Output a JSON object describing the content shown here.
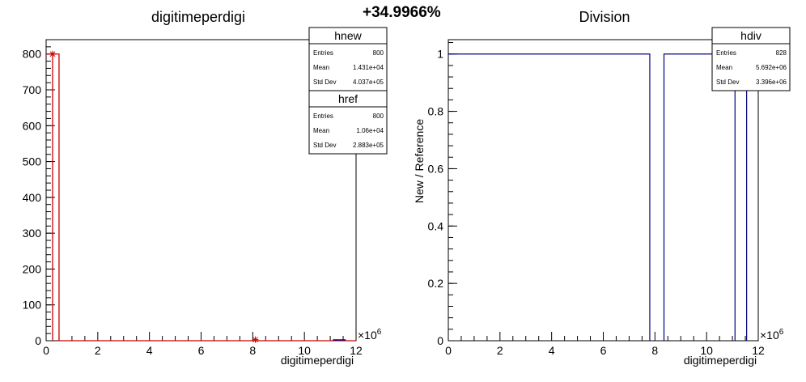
{
  "header": {
    "percent": "+34.9966%"
  },
  "chart_data": [
    {
      "type": "histogram",
      "title": "digitimeperdigi",
      "xlabel": "digitimeperdigi",
      "ylabel": "",
      "x_multiplier": "×10",
      "x_multiplier_exp": "6",
      "xlim": [
        0,
        12
      ],
      "ylim": [
        0,
        840
      ],
      "x_ticks": [
        0,
        2,
        4,
        6,
        8,
        10,
        12
      ],
      "x_tick_labels": [
        "0",
        "2",
        "4",
        "6",
        "8",
        "10",
        "12"
      ],
      "y_ticks": [
        0,
        100,
        200,
        300,
        400,
        500,
        600,
        700,
        800
      ],
      "y_tick_labels": [
        "0",
        "100",
        "200",
        "300",
        "400",
        "500",
        "600",
        "700",
        "800"
      ],
      "series": [
        {
          "name": "hnew",
          "color": "#cc0000",
          "markers": [
            {
              "x": 0.25,
              "y": 800
            },
            {
              "x": 8.1,
              "y": 3
            }
          ]
        },
        {
          "name": "href",
          "color": "#000000"
        }
      ],
      "hist_bins": [
        {
          "x0": 0.5,
          "x1": 0.5,
          "y": 800
        }
      ],
      "stats": [
        {
          "title": "hnew",
          "rows": [
            [
              "Entries",
              "800"
            ],
            [
              "Mean",
              "1.431e+04"
            ],
            [
              "Std Dev",
              "4.037e+05"
            ]
          ]
        },
        {
          "title": "href",
          "rows": [
            [
              "Entries",
              "800"
            ],
            [
              "Mean",
              "1.06e+04"
            ],
            [
              "Std Dev",
              "2.883e+05"
            ]
          ]
        }
      ]
    },
    {
      "type": "histogram",
      "title": "Division",
      "xlabel": "digitimeperdigi",
      "ylabel": "New / Reference",
      "x_multiplier": "×10",
      "x_multiplier_exp": "6",
      "xlim": [
        0,
        12
      ],
      "ylim": [
        0,
        1.05
      ],
      "x_ticks": [
        0,
        2,
        4,
        6,
        8,
        10,
        12
      ],
      "x_tick_labels": [
        "0",
        "2",
        "4",
        "6",
        "8",
        "10",
        "12"
      ],
      "y_ticks": [
        0,
        0.2,
        0.4,
        0.6,
        0.8,
        1
      ],
      "y_tick_labels": [
        "0",
        "0.2",
        "0.4",
        "0.6",
        "0.8",
        "1"
      ],
      "series": [
        {
          "name": "hdiv",
          "color": "#000080",
          "step_segments": [
            {
              "x0": 0,
              "x1": 7.8,
              "y": 1
            },
            {
              "x0": 8.35,
              "x1": 11.1,
              "y": 1
            },
            {
              "x0": 11.55,
              "x1": 12,
              "y": 1
            }
          ]
        }
      ],
      "stats": [
        {
          "title": "hdiv",
          "rows": [
            [
              "Entries",
              "828"
            ],
            [
              "Mean",
              "5.692e+06"
            ],
            [
              "Std Dev",
              "3.396e+06"
            ]
          ]
        }
      ]
    }
  ]
}
